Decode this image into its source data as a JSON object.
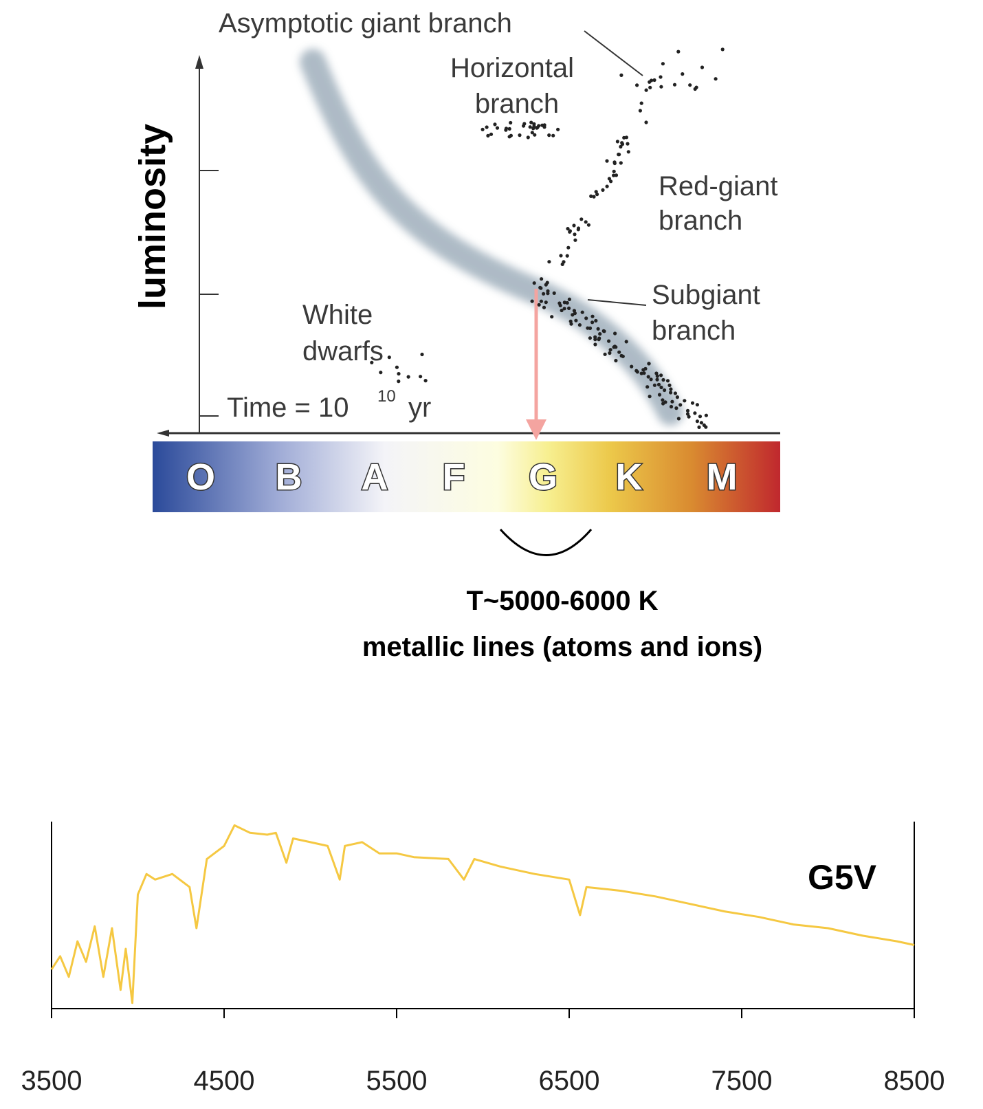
{
  "diagram": {
    "y_axis_label": "luminosity",
    "asymptotic_giant_branch": "Asymptotic giant branch",
    "horizontal_branch": [
      "Horizontal",
      "branch"
    ],
    "red_giant_branch": [
      "Red-giant",
      "branch"
    ],
    "subgiant_branch": [
      "Subgiant",
      "branch"
    ],
    "white_dwarfs": [
      "White",
      "dwarfs"
    ],
    "time": {
      "text": "Time = 10",
      "exponent": "10",
      "unit": "yr"
    },
    "spectral_classes": [
      "O",
      "B",
      "A",
      "F",
      "G",
      "K",
      "M"
    ],
    "caption": [
      "T~5000-6000 K",
      "metallic lines (atoms and ions)"
    ]
  },
  "chart_data": {
    "type": "line",
    "annotation": "G5V",
    "x": [
      3500,
      3550,
      3600,
      3650,
      3700,
      3750,
      3800,
      3850,
      3900,
      3930,
      3968,
      4000,
      4050,
      4100,
      4200,
      4300,
      4340,
      4400,
      4500,
      4560,
      4650,
      4750,
      4800,
      4861,
      4900,
      5000,
      5100,
      5170,
      5200,
      5300,
      5400,
      5500,
      5600,
      5800,
      5890,
      5950,
      6100,
      6300,
      6500,
      6563,
      6600,
      6800,
      7000,
      7200,
      7400,
      7600,
      7800,
      8000,
      8200,
      8400,
      8500
    ],
    "series": [
      {
        "color": "#f5c842",
        "values": [
          0.21,
          0.28,
          0.17,
          0.36,
          0.25,
          0.44,
          0.17,
          0.43,
          0.1,
          0.32,
          0.03,
          0.61,
          0.72,
          0.69,
          0.72,
          0.65,
          0.43,
          0.8,
          0.87,
          0.98,
          0.94,
          0.93,
          0.94,
          0.78,
          0.91,
          0.89,
          0.87,
          0.69,
          0.87,
          0.89,
          0.83,
          0.83,
          0.81,
          0.8,
          0.69,
          0.8,
          0.76,
          0.72,
          0.69,
          0.5,
          0.65,
          0.63,
          0.6,
          0.56,
          0.52,
          0.49,
          0.45,
          0.43,
          0.39,
          0.36,
          0.34
        ]
      }
    ],
    "xlim": [
      3500,
      8500
    ],
    "ylim": [
      0,
      1
    ],
    "xticks": [
      3500,
      4500,
      5500,
      6500,
      7500,
      8500
    ]
  }
}
